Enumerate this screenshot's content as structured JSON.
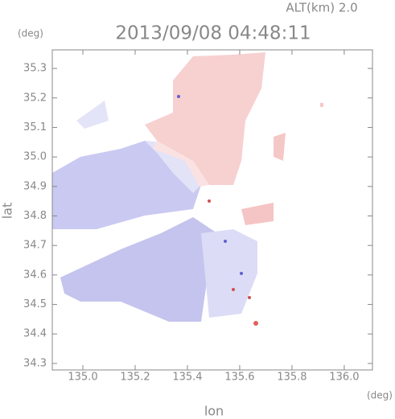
{
  "chart_data": {
    "type": "heatmap",
    "title": "2013/09/08 04:48:11",
    "subtitle": "ALT(km) 2.0",
    "x_label": "lon",
    "y_label": "lat",
    "x_unit": "(deg)",
    "y_unit": "(deg)",
    "xlim": [
      134.883,
      136.108
    ],
    "ylim": [
      34.278,
      35.363
    ],
    "xticks": [
      {
        "value": 135,
        "label": "135.0"
      },
      135.2,
      135.4,
      135.6,
      135.8,
      {
        "value": 136,
        "label": "136.0"
      }
    ],
    "yticks": [
      34.3,
      34.4,
      34.5,
      34.6,
      34.7,
      34.8,
      34.9,
      {
        "value": 35,
        "label": "35.0"
      },
      35.1,
      35.2,
      35.3
    ]
  }
}
